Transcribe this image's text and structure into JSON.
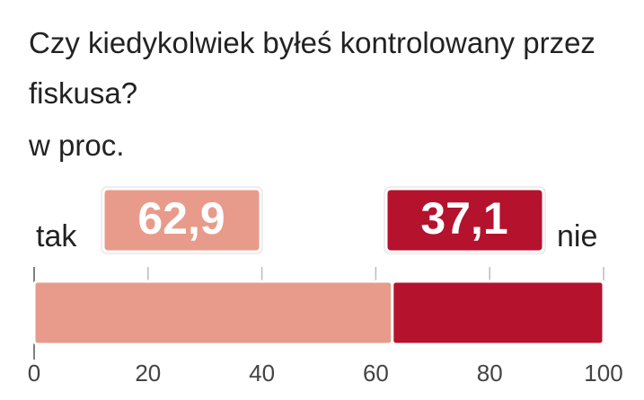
{
  "chart_data": {
    "type": "bar",
    "orientation": "horizontal",
    "stacked": true,
    "title": "Czy kiedykolwiek byłeś kontrolowany przez fiskusa?",
    "subtitle": "w proc.",
    "series": [
      {
        "name": "tak",
        "color": "#e89b8a",
        "values": [
          62.9
        ],
        "value_labels": [
          "62,9"
        ]
      },
      {
        "name": "nie",
        "color": "#b5122e",
        "values": [
          37.1
        ],
        "value_labels": [
          "37,1"
        ]
      }
    ],
    "xlim": [
      0,
      100
    ],
    "xticks": [
      0,
      20,
      40,
      60,
      80,
      100
    ],
    "grid": true
  }
}
